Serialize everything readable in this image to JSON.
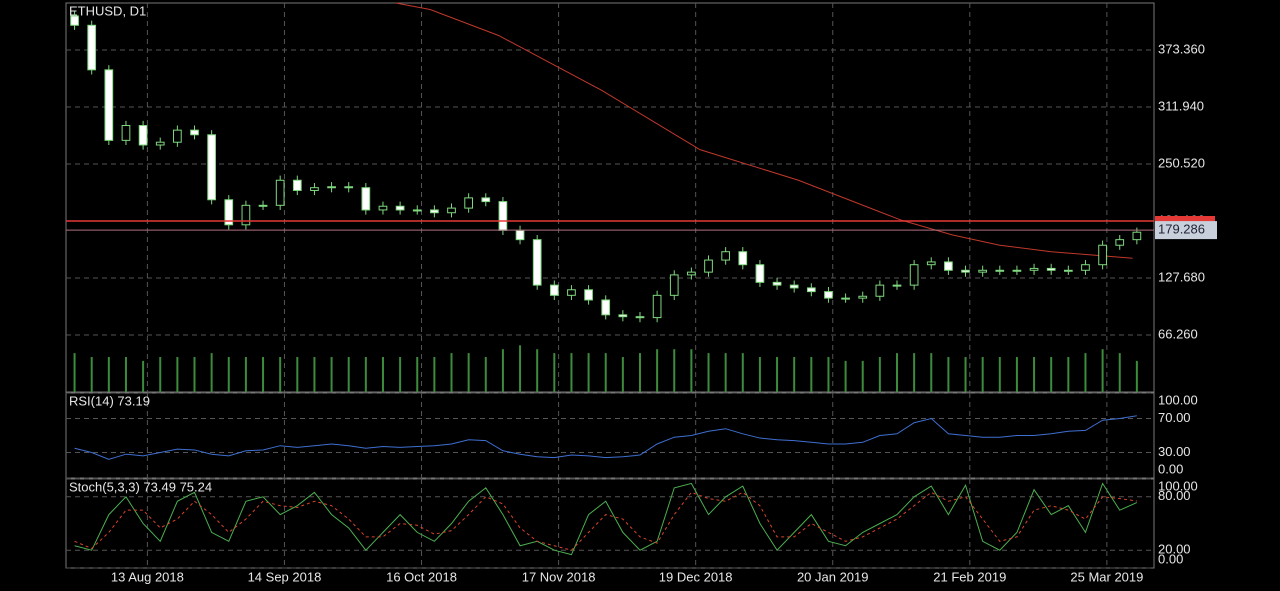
{
  "chart_data": [
    {
      "type": "candlestick",
      "title": "ETHUSD, D1",
      "x": [
        "2018-07-27",
        "2018-07-31",
        "2018-08-04",
        "2018-08-08",
        "2018-08-12",
        "2018-08-16",
        "2018-08-20",
        "2018-08-24",
        "2018-08-28",
        "2018-09-01",
        "2018-09-05",
        "2018-09-09",
        "2018-09-13",
        "2018-09-17",
        "2018-09-21",
        "2018-09-25",
        "2018-09-29",
        "2018-10-03",
        "2018-10-07",
        "2018-10-11",
        "2018-10-15",
        "2018-10-19",
        "2018-10-23",
        "2018-10-27",
        "2018-10-31",
        "2018-11-04",
        "2018-11-08",
        "2018-11-12",
        "2018-11-16",
        "2018-11-20",
        "2018-11-24",
        "2018-11-28",
        "2018-12-02",
        "2018-12-06",
        "2018-12-10",
        "2018-12-14",
        "2018-12-18",
        "2018-12-22",
        "2018-12-26",
        "2018-12-30",
        "2019-01-03",
        "2019-01-07",
        "2019-01-11",
        "2019-01-15",
        "2019-01-19",
        "2019-01-23",
        "2019-01-27",
        "2019-01-31",
        "2019-02-04",
        "2019-02-08",
        "2019-02-12",
        "2019-02-16",
        "2019-02-20",
        "2019-02-24",
        "2019-02-28",
        "2019-03-04",
        "2019-03-08",
        "2019-03-12",
        "2019-03-16",
        "2019-03-20",
        "2019-03-24",
        "2019-03-28",
        "2019-04-01"
      ],
      "open": [
        410,
        400,
        352,
        276,
        292,
        271,
        274,
        287,
        282,
        212,
        185,
        206,
        206,
        233,
        222,
        225,
        226,
        225,
        201,
        205,
        201,
        201,
        198,
        203,
        214,
        210,
        179,
        169,
        120,
        109,
        115,
        104,
        88,
        86,
        85,
        109,
        131,
        134,
        147,
        156,
        142,
        123,
        120,
        117,
        113,
        106,
        106,
        108,
        120,
        120,
        142,
        145,
        136,
        134,
        136,
        136,
        136,
        138,
        136,
        136,
        142,
        163,
        169
      ],
      "high": [
        415,
        405,
        357,
        297,
        297,
        279,
        292,
        292,
        287,
        217,
        211,
        211,
        238,
        238,
        230,
        231,
        231,
        230,
        210,
        210,
        206,
        206,
        208,
        219,
        219,
        215,
        184,
        174,
        125,
        120,
        120,
        109,
        93,
        91,
        114,
        136,
        139,
        152,
        161,
        161,
        147,
        128,
        125,
        122,
        118,
        111,
        113,
        125,
        125,
        147,
        150,
        150,
        141,
        141,
        141,
        141,
        143,
        143,
        141,
        147,
        168,
        174,
        182
      ],
      "low": [
        395,
        347,
        271,
        271,
        266,
        266,
        269,
        277,
        207,
        180,
        180,
        201,
        201,
        217,
        217,
        220,
        220,
        196,
        196,
        196,
        196,
        193,
        193,
        198,
        205,
        174,
        164,
        115,
        104,
        104,
        99,
        83,
        81,
        80,
        80,
        104,
        126,
        129,
        142,
        137,
        118,
        115,
        112,
        108,
        101,
        101,
        101,
        103,
        115,
        115,
        137,
        131,
        129,
        129,
        131,
        131,
        131,
        131,
        131,
        131,
        137,
        158,
        164
      ],
      "close": [
        400,
        352,
        276,
        292,
        271,
        274,
        287,
        282,
        212,
        185,
        206,
        206,
        233,
        222,
        225,
        226,
        225,
        201,
        205,
        201,
        201,
        198,
        203,
        214,
        210,
        179,
        169,
        120,
        109,
        115,
        104,
        88,
        86,
        85,
        109,
        131,
        134,
        147,
        156,
        142,
        123,
        120,
        117,
        113,
        106,
        106,
        108,
        120,
        120,
        142,
        145,
        136,
        134,
        136,
        136,
        136,
        138,
        136,
        136,
        142,
        163,
        169,
        177
      ],
      "volume": [
        10,
        9,
        9,
        9,
        8,
        9,
        9,
        9,
        10,
        9,
        9,
        9,
        9,
        9,
        9,
        9,
        9,
        9,
        9,
        9,
        9,
        9,
        10,
        10,
        9,
        11,
        12,
        11,
        10,
        10,
        10,
        10,
        9,
        10,
        11,
        11,
        11,
        10,
        10,
        10,
        9,
        9,
        9,
        9,
        9,
        8,
        8,
        9,
        10,
        10,
        10,
        9,
        9,
        9,
        9,
        9,
        9,
        9,
        9,
        10,
        11,
        10,
        8
      ],
      "volume_lim": [
        0,
        100
      ],
      "ma": {
        "color": "#c0392b",
        "x": [
          "2018-10-10",
          "2018-10-18",
          "2018-11-03",
          "2018-11-27",
          "2018-12-20",
          "2019-01-12",
          "2019-02-05",
          "2019-02-17",
          "2019-02-28",
          "2019-03-12",
          "2019-03-31"
        ],
        "values": [
          424,
          417,
          389,
          330,
          266,
          233,
          190,
          174,
          163,
          156,
          149
        ]
      },
      "level": {
        "value": 189.1,
        "color": "#e53935"
      },
      "bid": {
        "value": 179.286,
        "label": "179.286"
      },
      "up_color": "#7fd87f",
      "down_color": "#ffffff",
      "xlim": [
        "2018-07-25",
        "2019-04-05"
      ],
      "xticks": [
        {
          "value": "2018-08-13",
          "label": "13 Aug 2018"
        },
        {
          "value": "2018-09-14",
          "label": "14 Sep 2018"
        },
        {
          "value": "2018-10-16",
          "label": "16 Oct 2018"
        },
        {
          "value": "2018-11-17",
          "label": "17 Nov 2018"
        },
        {
          "value": "2018-12-19",
          "label": "19 Dec 2018"
        },
        {
          "value": "2019-01-20",
          "label": "20 Jan 2019"
        },
        {
          "value": "2019-02-21",
          "label": "21 Feb 2019"
        },
        {
          "value": "2019-03-25",
          "label": "25 Mar 2019"
        }
      ],
      "ylim": [
        4.84,
        424.0
      ],
      "yticks": [
        {
          "value": 373.36,
          "label": "373.360"
        },
        {
          "value": 311.94,
          "label": "311.940"
        },
        {
          "value": 250.52,
          "label": "250.520"
        },
        {
          "value": 189.1,
          "label": "189.100"
        },
        {
          "value": 127.68,
          "label": "127.680"
        },
        {
          "value": 66.26,
          "label": "66.260"
        }
      ],
      "grid": true
    },
    {
      "type": "line",
      "title": "RSI(14) 73.19",
      "x": [
        "2018-07-27",
        "2018-07-31",
        "2018-08-04",
        "2018-08-08",
        "2018-08-12",
        "2018-08-16",
        "2018-08-20",
        "2018-08-24",
        "2018-08-28",
        "2018-09-01",
        "2018-09-05",
        "2018-09-09",
        "2018-09-13",
        "2018-09-17",
        "2018-09-21",
        "2018-09-25",
        "2018-09-29",
        "2018-10-03",
        "2018-10-07",
        "2018-10-11",
        "2018-10-15",
        "2018-10-19",
        "2018-10-23",
        "2018-10-27",
        "2018-10-31",
        "2018-11-04",
        "2018-11-08",
        "2018-11-12",
        "2018-11-16",
        "2018-11-20",
        "2018-11-24",
        "2018-11-28",
        "2018-12-02",
        "2018-12-06",
        "2018-12-10",
        "2018-12-14",
        "2018-12-18",
        "2018-12-22",
        "2018-12-26",
        "2018-12-30",
        "2019-01-03",
        "2019-01-07",
        "2019-01-11",
        "2019-01-15",
        "2019-01-19",
        "2019-01-23",
        "2019-01-27",
        "2019-01-31",
        "2019-02-04",
        "2019-02-08",
        "2019-02-12",
        "2019-02-16",
        "2019-02-20",
        "2019-02-24",
        "2019-02-28",
        "2019-03-04",
        "2019-03-08",
        "2019-03-12",
        "2019-03-16",
        "2019-03-20",
        "2019-03-24",
        "2019-03-28",
        "2019-04-01"
      ],
      "series": [
        {
          "color": "#3f6fd1",
          "values": [
            35,
            30,
            22,
            28,
            26,
            30,
            34,
            33,
            28,
            26,
            32,
            33,
            38,
            36,
            38,
            40,
            38,
            35,
            37,
            36,
            37,
            38,
            40,
            45,
            44,
            32,
            28,
            25,
            24,
            27,
            26,
            24,
            25,
            27,
            40,
            48,
            50,
            55,
            58,
            52,
            47,
            45,
            44,
            42,
            40,
            40,
            42,
            50,
            52,
            65,
            70,
            52,
            50,
            48,
            48,
            50,
            50,
            52,
            55,
            56,
            68,
            70,
            73.19
          ]
        }
      ],
      "ylim": [
        0,
        100
      ],
      "yticks": [
        {
          "value": 100,
          "label": "100.00"
        },
        {
          "value": 70,
          "label": "70.00"
        },
        {
          "value": 30,
          "label": "30.00"
        },
        {
          "value": 0,
          "label": "0.00"
        }
      ]
    },
    {
      "type": "line",
      "title": "Stoch(5,3,3) 73.49 75.24",
      "x": [
        "2018-07-27",
        "2018-07-31",
        "2018-08-04",
        "2018-08-08",
        "2018-08-12",
        "2018-08-16",
        "2018-08-20",
        "2018-08-24",
        "2018-08-28",
        "2018-09-01",
        "2018-09-05",
        "2018-09-09",
        "2018-09-13",
        "2018-09-17",
        "2018-09-21",
        "2018-09-25",
        "2018-09-29",
        "2018-10-03",
        "2018-10-07",
        "2018-10-11",
        "2018-10-15",
        "2018-10-19",
        "2018-10-23",
        "2018-10-27",
        "2018-10-31",
        "2018-11-04",
        "2018-11-08",
        "2018-11-12",
        "2018-11-16",
        "2018-11-20",
        "2018-11-24",
        "2018-11-28",
        "2018-12-02",
        "2018-12-06",
        "2018-12-10",
        "2018-12-14",
        "2018-12-18",
        "2018-12-22",
        "2018-12-26",
        "2018-12-30",
        "2019-01-03",
        "2019-01-07",
        "2019-01-11",
        "2019-01-15",
        "2019-01-19",
        "2019-01-23",
        "2019-01-27",
        "2019-01-31",
        "2019-02-04",
        "2019-02-08",
        "2019-02-12",
        "2019-02-16",
        "2019-02-20",
        "2019-02-24",
        "2019-02-28",
        "2019-03-04",
        "2019-03-08",
        "2019-03-12",
        "2019-03-16",
        "2019-03-20",
        "2019-03-24",
        "2019-03-28",
        "2019-04-01"
      ],
      "series": [
        {
          "color": "#4caf50",
          "values": [
            25,
            20,
            60,
            80,
            50,
            30,
            75,
            85,
            40,
            30,
            75,
            80,
            60,
            70,
            85,
            60,
            45,
            20,
            40,
            60,
            40,
            30,
            50,
            75,
            90,
            60,
            25,
            30,
            20,
            15,
            60,
            75,
            40,
            20,
            30,
            90,
            95,
            60,
            80,
            92,
            50,
            20,
            40,
            60,
            30,
            25,
            40,
            50,
            60,
            80,
            92,
            60,
            93,
            30,
            20,
            40,
            88,
            60,
            70,
            40,
            95,
            65,
            73.49
          ]
        },
        {
          "color": "#d9442b",
          "dashed": true,
          "values": [
            30,
            22,
            40,
            65,
            65,
            45,
            55,
            75,
            60,
            40,
            55,
            75,
            70,
            68,
            75,
            70,
            55,
            35,
            35,
            50,
            48,
            38,
            42,
            60,
            80,
            72,
            45,
            30,
            25,
            20,
            40,
            60,
            55,
            35,
            28,
            60,
            85,
            78,
            75,
            85,
            70,
            35,
            35,
            50,
            40,
            30,
            35,
            45,
            55,
            70,
            85,
            75,
            80,
            55,
            30,
            35,
            65,
            70,
            65,
            55,
            80,
            78,
            75.24
          ]
        }
      ],
      "ylim": [
        0,
        100
      ],
      "yticks": [
        {
          "value": 100,
          "label": "100.00"
        },
        {
          "value": 80,
          "label": "80.00"
        },
        {
          "value": 20,
          "label": "20.00"
        },
        {
          "value": 0,
          "label": "0.00"
        }
      ]
    }
  ]
}
